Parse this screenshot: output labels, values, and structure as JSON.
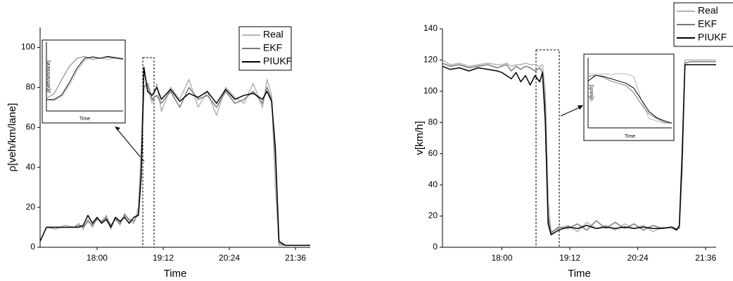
{
  "chart_data": [
    {
      "type": "line",
      "x_label": "Time",
      "y_label": "ρ[veh/km/lane]",
      "legend": "upper right",
      "xlim": [
        "16:58",
        "21:52"
      ],
      "xticks": [
        "18:00",
        "19:12",
        "20:24",
        "21:36"
      ],
      "ylim": [
        0,
        110
      ],
      "yticks": [
        0,
        20,
        40,
        60,
        80,
        100
      ],
      "x": [
        "16:58",
        "17:05",
        "17:15",
        "17:25",
        "17:35",
        "17:40",
        "17:45",
        "17:50",
        "17:55",
        "18:00",
        "18:05",
        "18:10",
        "18:15",
        "18:20",
        "18:25",
        "18:30",
        "18:35",
        "18:40",
        "18:45",
        "18:48",
        "18:51",
        "18:55",
        "19:00",
        "19:05",
        "19:10",
        "19:20",
        "19:30",
        "19:40",
        "19:50",
        "20:00",
        "20:10",
        "20:20",
        "20:30",
        "20:40",
        "20:50",
        "21:00",
        "21:05",
        "21:10",
        "21:14",
        "21:18",
        "21:25",
        "21:35",
        "21:45",
        "21:52"
      ],
      "series": [
        {
          "name": "Real",
          "color": "#b4b4b4",
          "values": [
            3,
            10,
            9,
            11,
            10,
            12,
            9,
            14,
            10,
            15,
            12,
            16,
            9,
            15,
            11,
            17,
            13,
            12,
            20,
            50,
            88,
            80,
            72,
            82,
            68,
            80,
            74,
            84,
            70,
            78,
            66,
            80,
            75,
            72,
            82,
            70,
            84,
            76,
            30,
            1,
            1,
            1,
            1,
            1
          ]
        },
        {
          "name": "EKF",
          "color": "#7a7a7a",
          "values": [
            3,
            10,
            10,
            10,
            10,
            11,
            10,
            13,
            11,
            14,
            13,
            15,
            11,
            14,
            12,
            16,
            14,
            13,
            17,
            40,
            80,
            82,
            74,
            76,
            72,
            78,
            70,
            80,
            74,
            76,
            70,
            78,
            72,
            74,
            78,
            72,
            80,
            74,
            45,
            2,
            1,
            1,
            1,
            1
          ]
        },
        {
          "name": "PIUKF",
          "color": "#000000",
          "values": [
            3,
            10,
            10,
            10,
            10,
            10,
            11,
            16,
            12,
            15,
            12,
            14,
            10,
            15,
            13,
            15,
            12,
            15,
            16,
            35,
            90,
            78,
            76,
            80,
            74,
            79,
            73,
            77,
            75,
            78,
            72,
            79,
            74,
            76,
            77,
            74,
            78,
            73,
            50,
            3,
            1,
            1,
            1,
            1
          ]
        }
      ]
    },
    {
      "type": "line",
      "x_label": "Time",
      "y_label": "ρ[veh/km/lane]",
      "xlim": [
        "18:46",
        "18:56"
      ],
      "ylim": [
        0,
        120
      ],
      "x": [
        "18:46",
        "18:47",
        "18:48",
        "18:49",
        "18:50",
        "18:51",
        "18:52",
        "18:53",
        "18:54",
        "18:55",
        "18:56"
      ],
      "series": [
        {
          "name": "Real",
          "color": "#b4b4b4",
          "values": [
            20,
            18,
            25,
            45,
            70,
            88,
            95,
            92,
            90,
            92,
            90
          ]
        },
        {
          "name": "EKF",
          "color": "#7a7a7a",
          "values": [
            22,
            30,
            55,
            78,
            92,
            95,
            90,
            92,
            94,
            92,
            90
          ]
        },
        {
          "name": "PIUKF",
          "color": "#000000",
          "values": [
            20,
            20,
            28,
            50,
            75,
            92,
            94,
            92,
            95,
            93,
            91
          ]
        }
      ]
    },
    {
      "type": "line",
      "x_label": "Time",
      "y_label": "v[km/h]",
      "legend": "upper right",
      "xlim": [
        "16:57",
        "21:47"
      ],
      "xticks": [
        "18:00",
        "19:12",
        "20:24",
        "21:36"
      ],
      "ylim": [
        0,
        140
      ],
      "yticks": [
        0,
        20,
        40,
        60,
        80,
        100,
        120,
        140
      ],
      "x": [
        "16:57",
        "17:05",
        "17:15",
        "17:25",
        "17:35",
        "17:45",
        "17:55",
        "18:00",
        "18:05",
        "18:10",
        "18:15",
        "18:20",
        "18:25",
        "18:30",
        "18:35",
        "18:40",
        "18:43",
        "18:46",
        "18:49",
        "18:52",
        "19:00",
        "19:10",
        "19:20",
        "19:30",
        "19:40",
        "19:50",
        "20:00",
        "20:10",
        "20:20",
        "20:30",
        "20:40",
        "20:50",
        "21:00",
        "21:05",
        "21:08",
        "21:11",
        "21:14",
        "21:20",
        "21:30",
        "21:40",
        "21:47"
      ],
      "series": [
        {
          "name": "Real",
          "color": "#b4b4b4",
          "values": [
            120,
            117,
            118,
            116,
            117,
            118,
            117,
            117,
            118,
            116,
            117,
            117,
            118,
            117,
            117,
            116,
            117,
            100,
            30,
            10,
            12,
            14,
            10,
            16,
            12,
            14,
            11,
            15,
            12,
            14,
            10,
            13,
            12,
            11,
            13,
            60,
            120,
            120,
            120,
            120,
            120
          ]
        },
        {
          "name": "EKF",
          "color": "#7a7a7a",
          "values": [
            118,
            116,
            117,
            115,
            116,
            117,
            115,
            116,
            117,
            113,
            116,
            114,
            116,
            115,
            113,
            115,
            112,
            90,
            20,
            9,
            13,
            12,
            15,
            11,
            17,
            12,
            16,
            12,
            15,
            11,
            14,
            12,
            13,
            12,
            12,
            50,
            118,
            119,
            119,
            119,
            119
          ]
        },
        {
          "name": "PIUKF",
          "color": "#000000",
          "values": [
            116,
            114,
            115,
            113,
            115,
            114,
            113,
            112,
            110,
            108,
            112,
            106,
            110,
            104,
            110,
            106,
            112,
            80,
            15,
            8,
            11,
            13,
            12,
            14,
            12,
            13,
            12,
            13,
            12,
            13,
            12,
            12,
            13,
            11,
            14,
            60,
            117,
            117,
            117,
            117,
            117
          ]
        }
      ]
    },
    {
      "type": "line",
      "x_label": "Time",
      "y_label": "v[km/h]",
      "xlim": [
        "18:37",
        "18:48"
      ],
      "ylim": [
        0,
        150
      ],
      "x": [
        "18:37",
        "18:38",
        "18:39",
        "18:40",
        "18:41",
        "18:42",
        "18:43",
        "18:44",
        "18:45",
        "18:46",
        "18:47",
        "18:48"
      ],
      "series": [
        {
          "name": "Real",
          "color": "#b4b4b4",
          "values": [
            115,
            115,
            115,
            114,
            116,
            115,
            110,
            60,
            20,
            15,
            10,
            10
          ]
        },
        {
          "name": "EKF",
          "color": "#7a7a7a",
          "values": [
            110,
            112,
            108,
            100,
            95,
            90,
            75,
            50,
            30,
            20,
            12,
            10
          ]
        },
        {
          "name": "PIUKF",
          "color": "#000000",
          "values": [
            100,
            112,
            110,
            105,
            100,
            95,
            85,
            60,
            35,
            22,
            15,
            10
          ]
        }
      ]
    }
  ]
}
